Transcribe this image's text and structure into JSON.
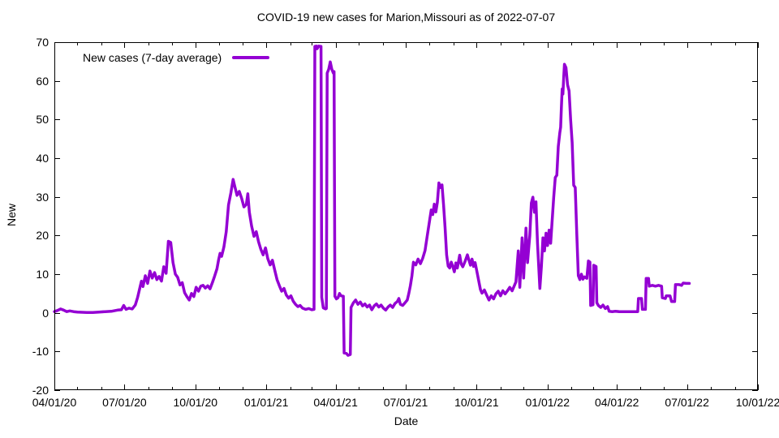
{
  "title": "COVID-19 new cases for Marion,Missouri as of 2022-07-07",
  "legend": {
    "label": "New cases (7-day average)"
  },
  "axes": {
    "x_label": "Date",
    "y_label": "New",
    "x_ticks": [
      {
        "label": "04/01/20",
        "day": 0
      },
      {
        "label": "07/01/20",
        "day": 91
      },
      {
        "label": "10/01/20",
        "day": 183
      },
      {
        "label": "01/01/21",
        "day": 275
      },
      {
        "label": "04/01/21",
        "day": 365
      },
      {
        "label": "07/01/21",
        "day": 456
      },
      {
        "label": "10/01/21",
        "day": 548
      },
      {
        "label": "01/01/22",
        "day": 640
      },
      {
        "label": "04/01/22",
        "day": 730
      },
      {
        "label": "07/01/22",
        "day": 821
      },
      {
        "label": "10/01/22",
        "day": 913
      }
    ],
    "x_minor_tick_days": [
      0,
      30,
      61,
      91,
      122,
      153,
      183,
      214,
      244,
      275,
      306,
      334,
      365,
      395,
      426,
      456,
      487,
      518,
      548,
      579,
      609,
      640,
      671,
      699,
      730,
      760,
      791,
      821,
      852,
      883,
      913
    ],
    "y_ticks": [
      -20,
      -10,
      0,
      10,
      20,
      30,
      40,
      50,
      60,
      70
    ]
  },
  "colors": {
    "line": "#9400d3",
    "axis": "#000000",
    "background": "#ffffff"
  },
  "chart_data": {
    "type": "line",
    "title": "COVID-19 new cases for Marion,Missouri as of 2022-07-07",
    "xlabel": "Date",
    "ylabel": "New",
    "x_unit": "days since 2020-04-01",
    "xlim": [
      0,
      913
    ],
    "xlim_dates": [
      "2020-04-01",
      "2022-10-01"
    ],
    "ylim": [
      -20,
      70
    ],
    "grid": false,
    "legend_position": "top-left-inside",
    "series": [
      {
        "name": "New cases (7-day average)",
        "color": "#9400d3",
        "points": [
          [
            0,
            0.3
          ],
          [
            4,
            0.6
          ],
          [
            8,
            1.0
          ],
          [
            12,
            0.7
          ],
          [
            16,
            0.3
          ],
          [
            20,
            0.5
          ],
          [
            25,
            0.3
          ],
          [
            30,
            0.2
          ],
          [
            36,
            0.15
          ],
          [
            42,
            0.1
          ],
          [
            50,
            0.1
          ],
          [
            58,
            0.2
          ],
          [
            66,
            0.3
          ],
          [
            74,
            0.4
          ],
          [
            82,
            0.7
          ],
          [
            87,
            0.8
          ],
          [
            90,
            1.9
          ],
          [
            93,
            0.9
          ],
          [
            97,
            1.2
          ],
          [
            101,
            1.0
          ],
          [
            105,
            2.0
          ],
          [
            108,
            4.0
          ],
          [
            111,
            6.5
          ],
          [
            113,
            8.2
          ],
          [
            115,
            6.8
          ],
          [
            118,
            9.6
          ],
          [
            121,
            7.6
          ],
          [
            124,
            10.8
          ],
          [
            127,
            9.0
          ],
          [
            130,
            10.4
          ],
          [
            133,
            8.6
          ],
          [
            136,
            9.4
          ],
          [
            139,
            8.2
          ],
          [
            142,
            11.9
          ],
          [
            145,
            10.2
          ],
          [
            148,
            18.5
          ],
          [
            151,
            18.2
          ],
          [
            154,
            13.0
          ],
          [
            157,
            10.0
          ],
          [
            160,
            9.2
          ],
          [
            163,
            7.2
          ],
          [
            166,
            7.8
          ],
          [
            169,
            5.2
          ],
          [
            172,
            4.2
          ],
          [
            175,
            3.3
          ],
          [
            178,
            5.0
          ],
          [
            181,
            4.2
          ],
          [
            184,
            6.6
          ],
          [
            187,
            5.6
          ],
          [
            190,
            6.9
          ],
          [
            193,
            7.1
          ],
          [
            196,
            6.4
          ],
          [
            199,
            7.0
          ],
          [
            202,
            6.2
          ],
          [
            205,
            7.8
          ],
          [
            208,
            9.5
          ],
          [
            211,
            11.4
          ],
          [
            213,
            13.6
          ],
          [
            215,
            15.4
          ],
          [
            217,
            14.6
          ],
          [
            220,
            17.0
          ],
          [
            223,
            21.0
          ],
          [
            226,
            27.9
          ],
          [
            229,
            31.0
          ],
          [
            232,
            34.5
          ],
          [
            234,
            32.8
          ],
          [
            237,
            30.4
          ],
          [
            240,
            31.4
          ],
          [
            243,
            29.6
          ],
          [
            246,
            27.4
          ],
          [
            249,
            28.0
          ],
          [
            251,
            30.8
          ],
          [
            253,
            26.0
          ],
          [
            256,
            22.4
          ],
          [
            259,
            19.8
          ],
          [
            262,
            21.0
          ],
          [
            265,
            18.4
          ],
          [
            268,
            16.4
          ],
          [
            271,
            15.0
          ],
          [
            274,
            16.8
          ],
          [
            277,
            14.0
          ],
          [
            280,
            12.4
          ],
          [
            283,
            13.6
          ],
          [
            286,
            11.0
          ],
          [
            289,
            8.6
          ],
          [
            292,
            7.0
          ],
          [
            295,
            5.6
          ],
          [
            298,
            6.3
          ],
          [
            301,
            4.6
          ],
          [
            304,
            3.8
          ],
          [
            307,
            4.4
          ],
          [
            310,
            3.0
          ],
          [
            313,
            2.2
          ],
          [
            316,
            1.6
          ],
          [
            319,
            1.9
          ],
          [
            322,
            1.2
          ],
          [
            326,
            0.9
          ],
          [
            330,
            1.1
          ],
          [
            334,
            0.8
          ],
          [
            337,
            0.9
          ],
          [
            338,
            68.9
          ],
          [
            340,
            69.0
          ],
          [
            341,
            68.3
          ],
          [
            343,
            69.0
          ],
          [
            346,
            68.9
          ],
          [
            347,
            4.0
          ],
          [
            349,
            1.3
          ],
          [
            352,
            1.0
          ],
          [
            353,
            1.1
          ],
          [
            354,
            62.0
          ],
          [
            356,
            63.0
          ],
          [
            358,
            64.9
          ],
          [
            360,
            63.0
          ],
          [
            362,
            62.0
          ],
          [
            363,
            62.4
          ],
          [
            364,
            4.3
          ],
          [
            366,
            3.6
          ],
          [
            368,
            3.9
          ],
          [
            370,
            5.0
          ],
          [
            372,
            4.4
          ],
          [
            375,
            4.3
          ],
          [
            376,
            -10.4
          ],
          [
            379,
            -10.5
          ],
          [
            381,
            -11.0
          ],
          [
            384,
            -10.8
          ],
          [
            385,
            1.4
          ],
          [
            388,
            2.6
          ],
          [
            391,
            3.3
          ],
          [
            394,
            2.2
          ],
          [
            397,
            2.8
          ],
          [
            400,
            1.8
          ],
          [
            403,
            2.3
          ],
          [
            406,
            1.5
          ],
          [
            409,
            2.0
          ],
          [
            412,
            0.8
          ],
          [
            415,
            1.8
          ],
          [
            418,
            2.3
          ],
          [
            421,
            1.5
          ],
          [
            424,
            2.0
          ],
          [
            427,
            1.2
          ],
          [
            430,
            0.7
          ],
          [
            433,
            1.5
          ],
          [
            436,
            2.0
          ],
          [
            439,
            1.4
          ],
          [
            442,
            2.4
          ],
          [
            445,
            2.9
          ],
          [
            447,
            3.7
          ],
          [
            449,
            2.2
          ],
          [
            452,
            1.9
          ],
          [
            455,
            2.6
          ],
          [
            458,
            3.3
          ],
          [
            460,
            5.0
          ],
          [
            462,
            7.0
          ],
          [
            464,
            9.5
          ],
          [
            466,
            13.1
          ],
          [
            469,
            12.4
          ],
          [
            472,
            13.9
          ],
          [
            475,
            12.7
          ],
          [
            478,
            14.1
          ],
          [
            481,
            16.1
          ],
          [
            484,
            20.0
          ],
          [
            487,
            24.0
          ],
          [
            489,
            26.6
          ],
          [
            491,
            25.4
          ],
          [
            493,
            28.1
          ],
          [
            495,
            26.1
          ],
          [
            497,
            28.6
          ],
          [
            499,
            33.6
          ],
          [
            501,
            32.4
          ],
          [
            503,
            33.1
          ],
          [
            505,
            28.0
          ],
          [
            507,
            22.0
          ],
          [
            509,
            15.0
          ],
          [
            511,
            12.1
          ],
          [
            513,
            11.6
          ],
          [
            515,
            13.1
          ],
          [
            517,
            12.0
          ],
          [
            519,
            10.6
          ],
          [
            521,
            12.9
          ],
          [
            523,
            11.6
          ],
          [
            526,
            14.9
          ],
          [
            528,
            12.6
          ],
          [
            530,
            11.9
          ],
          [
            533,
            13.3
          ],
          [
            536,
            15.0
          ],
          [
            538,
            13.6
          ],
          [
            540,
            12.3
          ],
          [
            542,
            13.9
          ],
          [
            544,
            12.0
          ],
          [
            546,
            13.0
          ],
          [
            548,
            11.0
          ],
          [
            551,
            8.0
          ],
          [
            553,
            6.0
          ],
          [
            555,
            5.1
          ],
          [
            558,
            5.9
          ],
          [
            561,
            4.6
          ],
          [
            564,
            3.3
          ],
          [
            567,
            4.4
          ],
          [
            570,
            3.6
          ],
          [
            573,
            4.9
          ],
          [
            576,
            5.6
          ],
          [
            579,
            4.4
          ],
          [
            582,
            5.7
          ],
          [
            585,
            4.9
          ],
          [
            588,
            5.7
          ],
          [
            591,
            6.6
          ],
          [
            594,
            5.7
          ],
          [
            596,
            6.6
          ],
          [
            599,
            8.0
          ],
          [
            602,
            16.0
          ],
          [
            604,
            6.6
          ],
          [
            607,
            19.4
          ],
          [
            609,
            9.0
          ],
          [
            612,
            21.9
          ],
          [
            614,
            13.0
          ],
          [
            617,
            20.0
          ],
          [
            619,
            28.4
          ],
          [
            621,
            29.9
          ],
          [
            623,
            26.0
          ],
          [
            625,
            28.7
          ],
          [
            627,
            18.0
          ],
          [
            630,
            6.3
          ],
          [
            632,
            12.0
          ],
          [
            634,
            19.4
          ],
          [
            636,
            16.0
          ],
          [
            638,
            20.6
          ],
          [
            640,
            17.4
          ],
          [
            642,
            21.4
          ],
          [
            644,
            18.0
          ],
          [
            646,
            24.0
          ],
          [
            648,
            30.0
          ],
          [
            650,
            35.0
          ],
          [
            652,
            35.6
          ],
          [
            654,
            43.0
          ],
          [
            656,
            46.6
          ],
          [
            657,
            48.0
          ],
          [
            658,
            53.0
          ],
          [
            659,
            57.9
          ],
          [
            660,
            56.6
          ],
          [
            661,
            61.0
          ],
          [
            662,
            64.3
          ],
          [
            664,
            63.4
          ],
          [
            666,
            59.0
          ],
          [
            668,
            57.4
          ],
          [
            670,
            50.0
          ],
          [
            672,
            44.0
          ],
          [
            674,
            33.0
          ],
          [
            676,
            32.4
          ],
          [
            678,
            20.4
          ],
          [
            680,
            9.6
          ],
          [
            682,
            8.6
          ],
          [
            684,
            10.0
          ],
          [
            686,
            8.7
          ],
          [
            688,
            9.3
          ],
          [
            691,
            8.9
          ],
          [
            693,
            13.4
          ],
          [
            695,
            13.1
          ],
          [
            696,
            1.9
          ],
          [
            699,
            2.1
          ],
          [
            700,
            12.3
          ],
          [
            703,
            12.0
          ],
          [
            704,
            2.6
          ],
          [
            706,
            1.9
          ],
          [
            709,
            1.4
          ],
          [
            712,
            2.0
          ],
          [
            715,
            1.1
          ],
          [
            718,
            1.6
          ],
          [
            720,
            0.4
          ],
          [
            724,
            0.3
          ],
          [
            728,
            0.4
          ],
          [
            733,
            0.3
          ],
          [
            738,
            0.3
          ],
          [
            743,
            0.3
          ],
          [
            748,
            0.3
          ],
          [
            753,
            0.3
          ],
          [
            757,
            0.3
          ],
          [
            758,
            3.7
          ],
          [
            762,
            3.7
          ],
          [
            763,
            0.9
          ],
          [
            767,
            0.9
          ],
          [
            768,
            8.9
          ],
          [
            771,
            8.9
          ],
          [
            772,
            6.9
          ],
          [
            776,
            7.1
          ],
          [
            780,
            6.9
          ],
          [
            784,
            7.1
          ],
          [
            788,
            6.9
          ],
          [
            789,
            3.9
          ],
          [
            793,
            3.7
          ],
          [
            794,
            4.4
          ],
          [
            799,
            4.4
          ],
          [
            801,
            2.9
          ],
          [
            805,
            2.9
          ],
          [
            806,
            7.3
          ],
          [
            811,
            7.3
          ],
          [
            814,
            7.1
          ],
          [
            816,
            7.7
          ],
          [
            820,
            7.6
          ],
          [
            824,
            7.6
          ]
        ]
      }
    ]
  }
}
